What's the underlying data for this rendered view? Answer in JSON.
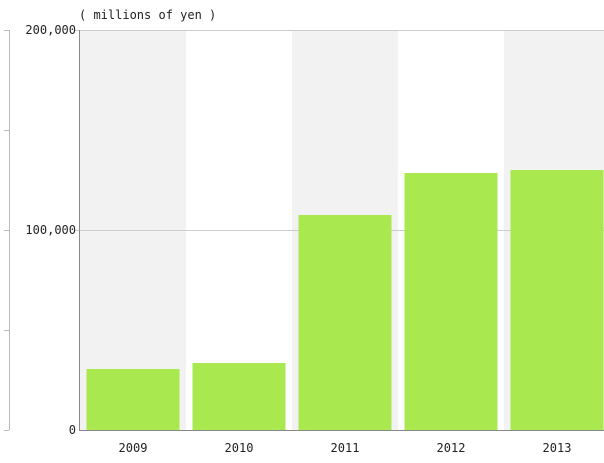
{
  "chart_data": {
    "type": "bar",
    "unit_label": "( millions of yen )",
    "categories": [
      "2009",
      "2010",
      "2011",
      "2012",
      "2013"
    ],
    "values": [
      30500,
      33500,
      107500,
      128500,
      130000
    ],
    "ylim": [
      0,
      200000
    ],
    "yticks": [
      0,
      100000,
      200000
    ],
    "ytick_labels": [
      "0",
      "100,000",
      "200,000"
    ],
    "bar_color": "#aae84f",
    "band_color": "#f2f2f2",
    "grid": true,
    "legend": "none"
  }
}
